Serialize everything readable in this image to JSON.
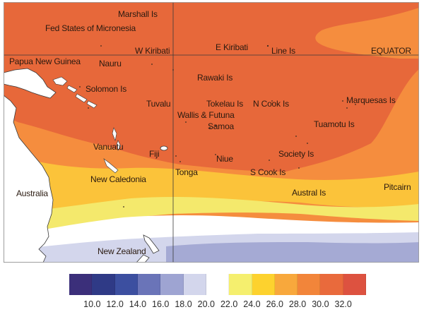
{
  "map": {
    "places": [
      {
        "id": "marshall-is",
        "label": "Marshall Is"
      },
      {
        "id": "fed-states-micronesia",
        "label": "Fed States of Micronesia"
      },
      {
        "id": "w-kiribati",
        "label": "W Kiribati"
      },
      {
        "id": "e-kiribati",
        "label": "E Kiribati"
      },
      {
        "id": "line-is",
        "label": "Line Is"
      },
      {
        "id": "equator",
        "label": "EQUATOR"
      },
      {
        "id": "papua-new-guinea",
        "label": "Papua New Guinea"
      },
      {
        "id": "nauru",
        "label": "Nauru"
      },
      {
        "id": "rawaki-is",
        "label": "Rawaki Is"
      },
      {
        "id": "solomon-is",
        "label": "Solomon Is"
      },
      {
        "id": "tuvalu",
        "label": "Tuvalu"
      },
      {
        "id": "tokelau-is",
        "label": "Tokelau Is"
      },
      {
        "id": "n-cook-is",
        "label": "N Cook Is"
      },
      {
        "id": "marquesas-is",
        "label": "Marquesas Is"
      },
      {
        "id": "wallis-futuna",
        "label": "Wallis & Futuna"
      },
      {
        "id": "samoa",
        "label": "Samoa"
      },
      {
        "id": "tuamotu-is",
        "label": "Tuamotu Is"
      },
      {
        "id": "vanuatu",
        "label": "Vanuatu"
      },
      {
        "id": "fiji",
        "label": "Fiji"
      },
      {
        "id": "society-is",
        "label": "Society Is"
      },
      {
        "id": "niue",
        "label": "Niue"
      },
      {
        "id": "tonga",
        "label": "Tonga"
      },
      {
        "id": "s-cook-is",
        "label": "S Cook Is"
      },
      {
        "id": "new-caledonia",
        "label": "New Caledonia"
      },
      {
        "id": "australia",
        "label": "Australia"
      },
      {
        "id": "austral-is",
        "label": "Austral Is"
      },
      {
        "id": "pitcairn",
        "label": "Pitcairn"
      },
      {
        "id": "new-zealand",
        "label": "New Zealand"
      }
    ]
  },
  "legend": {
    "colors": [
      "#3b2f7a",
      "#2f3a86",
      "#3c4fa0",
      "#6a74b8",
      "#9ea4d2",
      "#d3d6ec",
      "#ffffff",
      "#f5ef6e",
      "#fdd22e",
      "#f8a83c",
      "#f2853a",
      "#e96a3c",
      "#dd5240"
    ],
    "ticks": [
      "10.0",
      "12.0",
      "14.0",
      "16.0",
      "18.0",
      "20.0",
      "22.0",
      "24.0",
      "26.0",
      "28.0",
      "30.0",
      "32.0"
    ]
  }
}
